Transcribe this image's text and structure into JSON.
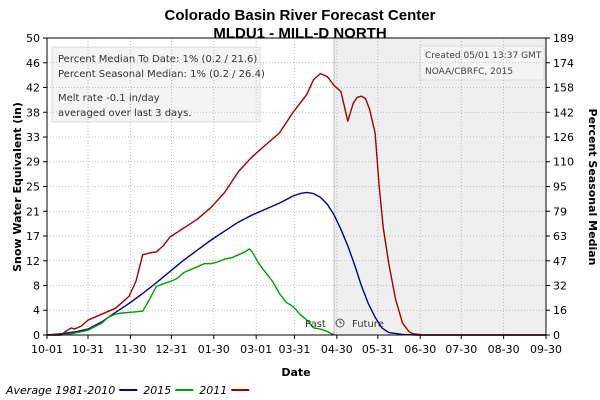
{
  "chart_data": {
    "type": "line",
    "title": "Colorado Basin River Forecast Center",
    "subtitle": "MLDU1 - MILL-D NORTH",
    "xlabel": "Date",
    "ylabel": "Snow Water Equivalent (in)",
    "y2label": "Percent Seasonal Median",
    "x_ticks": [
      "10-01",
      "10-31",
      "11-30",
      "12-31",
      "01-30",
      "03-01",
      "03-31",
      "04-30",
      "05-31",
      "06-30",
      "07-30",
      "08-30",
      "09-30"
    ],
    "y_ticks": [
      0,
      4,
      8,
      12,
      17,
      21,
      25,
      29,
      33,
      38,
      42,
      46,
      50
    ],
    "y_ticks_real": [
      0,
      4.17,
      8.33,
      12.5,
      16.67,
      20.83,
      25,
      29.17,
      33.33,
      37.5,
      41.67,
      45.83,
      50
    ],
    "y2_ticks": [
      0,
      16,
      32,
      47,
      63,
      79,
      95,
      110,
      126,
      142,
      158,
      174,
      189
    ],
    "ylim": [
      0,
      50
    ],
    "xlim_days": [
      0,
      365
    ],
    "forecast_start_day": 210,
    "past_label": "Past",
    "future_label": "Future",
    "annotations": {
      "median_to_date": "Percent Median To Date: 1% (0.2 / 21.6)",
      "seasonal_median": "Percent Seasonal Median: 1% (0.2 / 26.4)",
      "melt_rate": "Melt rate -0.1 in/day",
      "melt_avg": "averaged over last 3 days.",
      "created": "Created 05/01 13:37 GMT",
      "agency": "NOAA/CBRFC, 2015"
    },
    "legend_items": [
      {
        "label": "Average 1981-2010",
        "color": "#00008b"
      },
      {
        "label": "2015",
        "color": "#00a000"
      },
      {
        "label": "2011",
        "color": "#a00000"
      }
    ],
    "series": [
      {
        "name": "Average 1981-2010",
        "color": "#00008b",
        "x": [
          0,
          10,
          20,
          30,
          40,
          50,
          60,
          70,
          80,
          90,
          100,
          110,
          120,
          130,
          140,
          150,
          160,
          170,
          175,
          180,
          185,
          190,
          195,
          200,
          205,
          210,
          215,
          220,
          225,
          230,
          235,
          240,
          245,
          250,
          260,
          270,
          280,
          300,
          330,
          365
        ],
        "y": [
          0,
          0.2,
          0.5,
          1,
          2.2,
          3.8,
          5.3,
          7,
          8.8,
          10.7,
          12.6,
          14.3,
          16,
          17.5,
          19,
          20.2,
          21.2,
          22.2,
          22.8,
          23.4,
          23.8,
          24,
          23.8,
          23.2,
          22,
          20.2,
          17.8,
          15,
          11.8,
          8.3,
          5.3,
          3,
          1.2,
          0.4,
          0.1,
          0,
          0,
          0,
          0,
          0
        ]
      },
      {
        "name": "2015",
        "color": "#00a000",
        "x": [
          0,
          10,
          20,
          30,
          40,
          45,
          48,
          50,
          55,
          60,
          70,
          75,
          80,
          90,
          95,
          100,
          105,
          110,
          115,
          120,
          125,
          130,
          135,
          140,
          145,
          148,
          150,
          155,
          160,
          165,
          170,
          175,
          180,
          185,
          190,
          195,
          200,
          205,
          208,
          210
        ],
        "y": [
          0,
          0,
          0.3,
          0.8,
          2,
          3,
          3.3,
          3.5,
          3.7,
          3.8,
          4,
          6,
          8.2,
          9,
          9.5,
          10.5,
          11,
          11.5,
          12,
          12,
          12.3,
          12.8,
          13,
          13.5,
          14,
          14.5,
          14,
          12,
          10.5,
          9,
          7,
          5.5,
          4.8,
          3.5,
          2.5,
          1.2,
          1,
          0.6,
          0.2,
          0.1
        ]
      },
      {
        "name": "2011",
        "color": "#a00000",
        "x": [
          0,
          10,
          15,
          18,
          20,
          25,
          30,
          40,
          50,
          60,
          65,
          70,
          75,
          80,
          85,
          90,
          100,
          110,
          120,
          130,
          140,
          150,
          160,
          170,
          180,
          190,
          195,
          200,
          205,
          210,
          215,
          220,
          224,
          227,
          230,
          233,
          236,
          240,
          243,
          246,
          250,
          255,
          260,
          265,
          268,
          272,
          275,
          300,
          330,
          365
        ],
        "y": [
          0,
          0,
          0.8,
          1.2,
          1,
          1.5,
          2.5,
          3.5,
          4.5,
          6.5,
          9,
          13.5,
          13.8,
          14,
          15,
          16.5,
          18,
          19.5,
          21.5,
          24,
          27.5,
          30,
          32,
          34,
          37.5,
          40.5,
          43,
          44,
          43.5,
          42,
          41,
          36,
          39,
          40,
          40.2,
          39.8,
          38,
          34,
          25,
          18,
          12,
          6,
          2,
          0.5,
          0.2,
          0.1,
          0,
          0,
          0,
          0
        ]
      }
    ]
  }
}
